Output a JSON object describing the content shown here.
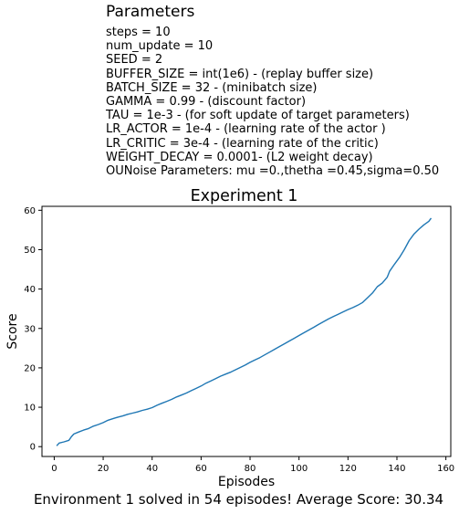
{
  "parameters": {
    "title": "Parameters",
    "lines": [
      "steps = 10",
      "num_update = 10",
      "SEED = 2",
      "BUFFER_SIZE = int(1e6) - (replay buffer size)",
      "BATCH_SIZE = 32 - (minibatch size)",
      "GAMMA = 0.99 - (discount factor)",
      "TAU = 1e-3 - (for soft update of target parameters)",
      "LR_ACTOR = 1e-4 - (learning rate of the actor )",
      "LR_CRITIC = 3e-4 - (learning rate of the critic)",
      "WEIGHT_DECAY = 0.0001- (L2 weight decay)",
      "OUNoise Parameters: mu =0.,thetha =0.45,sigma=0.50"
    ]
  },
  "footer": "Environment 1 solved in 54 episodes! Average Score: 30.34",
  "chart_data": {
    "type": "line",
    "title": "Experiment 1",
    "xlabel": "Episodes",
    "ylabel": "Score",
    "xlim": [
      -5,
      162
    ],
    "ylim": [
      -2.5,
      61
    ],
    "xticks": [
      0,
      20,
      40,
      60,
      80,
      100,
      120,
      140,
      160
    ],
    "yticks": [
      0,
      10,
      20,
      30,
      40,
      50,
      60
    ],
    "grid": false,
    "line_color": "#1f77b4",
    "series": [
      {
        "x": [
          1,
          2,
          4,
          6,
          7,
          8,
          10,
          12,
          14,
          16,
          18,
          20,
          22,
          24,
          26,
          28,
          30,
          32,
          34,
          36,
          38,
          40,
          42,
          44,
          46,
          48,
          50,
          52,
          54,
          56,
          58,
          60,
          62,
          64,
          66,
          68,
          70,
          72,
          74,
          76,
          78,
          80,
          82,
          84,
          86,
          88,
          90,
          92,
          94,
          96,
          98,
          100,
          102,
          104,
          106,
          108,
          110,
          112,
          114,
          116,
          118,
          120,
          122,
          124,
          126,
          128,
          130,
          132,
          134,
          136,
          137,
          139,
          141,
          143,
          145,
          147,
          149,
          151,
          153,
          154
        ],
        "y": [
          0.2,
          0.9,
          1.2,
          1.6,
          2.5,
          3.2,
          3.7,
          4.2,
          4.6,
          5.2,
          5.6,
          6.1,
          6.7,
          7.1,
          7.5,
          7.8,
          8.2,
          8.5,
          8.8,
          9.2,
          9.5,
          9.9,
          10.5,
          11.0,
          11.5,
          12.0,
          12.6,
          13.1,
          13.6,
          14.2,
          14.8,
          15.4,
          16.1,
          16.7,
          17.3,
          17.9,
          18.4,
          18.9,
          19.5,
          20.1,
          20.7,
          21.4,
          22.0,
          22.6,
          23.3,
          24.0,
          24.7,
          25.4,
          26.1,
          26.8,
          27.5,
          28.2,
          28.9,
          29.6,
          30.3,
          31.0,
          31.7,
          32.4,
          33.0,
          33.6,
          34.2,
          34.8,
          35.3,
          35.9,
          36.6,
          37.8,
          39.0,
          40.6,
          41.5,
          43.0,
          44.5,
          46.3,
          48.0,
          50.0,
          52.3,
          54.0,
          55.2,
          56.3,
          57.2,
          58.0
        ]
      }
    ]
  }
}
